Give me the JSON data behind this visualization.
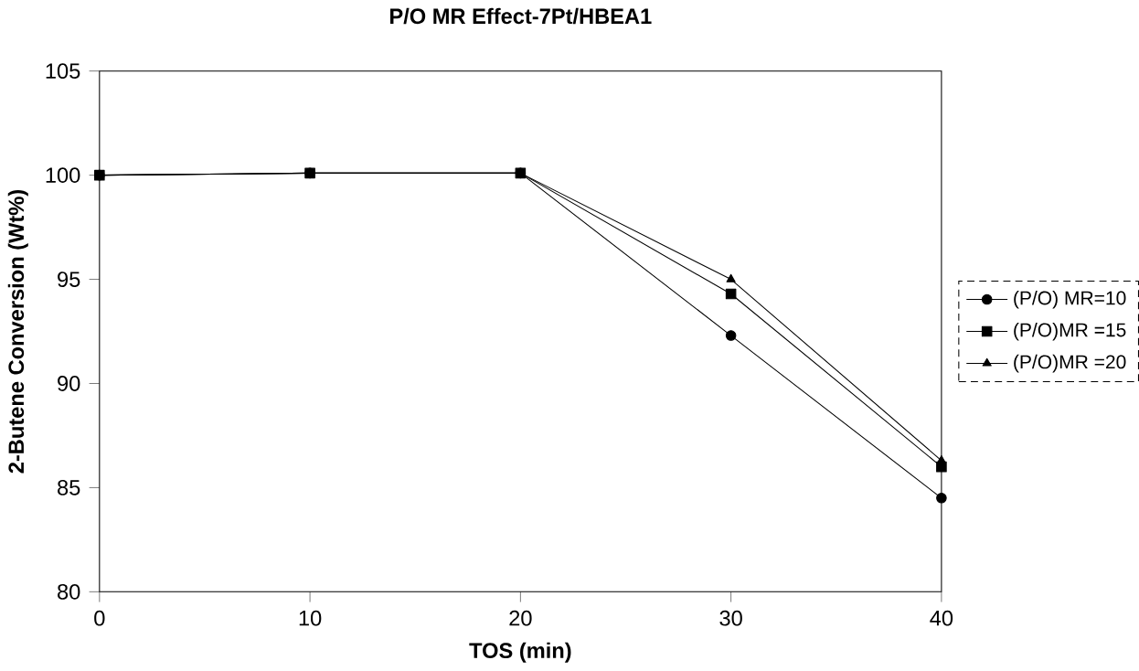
{
  "chart_data": {
    "type": "line",
    "title": "P/O MR Effect-7Pt/HBEA1",
    "xlabel": "TOS (min)",
    "ylabel": "2-Butene Conversion (Wt%)",
    "x": [
      0,
      10,
      20,
      30,
      40
    ],
    "xlim": [
      0,
      40
    ],
    "xticks": [
      0,
      10,
      20,
      30,
      40
    ],
    "ylim": [
      80,
      105
    ],
    "yticks": [
      80,
      85,
      90,
      95,
      100,
      105
    ],
    "legend": "right",
    "grid": false,
    "series": [
      {
        "name": "(P/O) MR=10",
        "color": "#000000",
        "marker": "circle",
        "values": [
          100,
          100.1,
          100.1,
          92.3,
          84.5
        ]
      },
      {
        "name": "(P/O)MR =15",
        "color": "#000000",
        "marker": "square",
        "values": [
          100,
          100.1,
          100.1,
          94.3,
          86.0
        ]
      },
      {
        "name": "(P/O)MR =20",
        "color": "#000000",
        "marker": "triangle",
        "values": [
          100,
          100.1,
          100.1,
          95.0,
          86.3
        ]
      }
    ]
  }
}
